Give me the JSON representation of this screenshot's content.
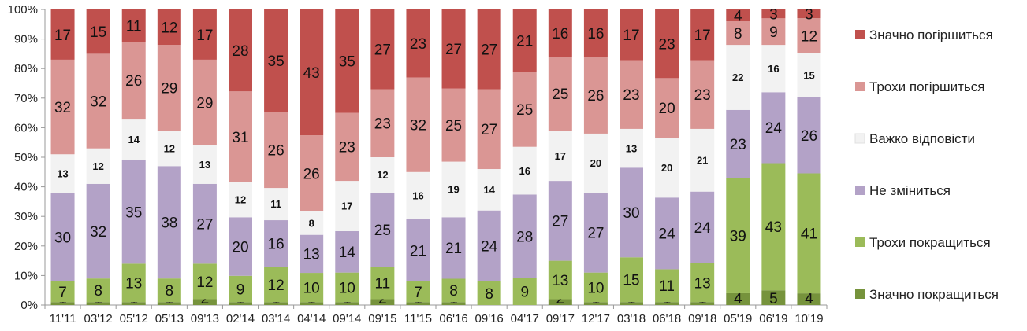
{
  "chart_data": {
    "type": "bar",
    "stacked": true,
    "normalized": true,
    "categories": [
      "11'11",
      "03'12",
      "05'12",
      "05'13",
      "09'13",
      "02'14",
      "03'14",
      "04'14",
      "09'14",
      "09'15",
      "11'15",
      "06'16",
      "09'16",
      "04'17",
      "09'17",
      "12'17",
      "03'18",
      "06'18",
      "09'18",
      "05'19",
      "06'19",
      "10'19"
    ],
    "ylim": [
      0,
      100
    ],
    "yticks": [
      "0%",
      "10%",
      "20%",
      "30%",
      "40%",
      "50%",
      "60%",
      "70%",
      "80%",
      "90%",
      "100%"
    ],
    "grid": false,
    "legend_position": "right",
    "series": [
      {
        "name": "Значно покращиться",
        "color": "#76933c",
        "values": [
          1,
          1,
          1,
          1,
          2,
          1,
          1,
          1,
          1,
          2,
          1,
          1,
          0,
          0,
          2,
          1,
          1,
          1,
          1,
          4,
          5,
          4
        ]
      },
      {
        "name": "Трохи покращиться",
        "color": "#9bbb59",
        "values": [
          7,
          8,
          13,
          8,
          12,
          9,
          12,
          10,
          10,
          11,
          7,
          8,
          8,
          9,
          13,
          10,
          15,
          11,
          13,
          39,
          43,
          41
        ]
      },
      {
        "name": "Не зміниться",
        "color": "#b3a2c7",
        "values": [
          30,
          32,
          35,
          38,
          27,
          20,
          16,
          13,
          14,
          25,
          21,
          21,
          24,
          28,
          27,
          27,
          30,
          24,
          24,
          23,
          24,
          26
        ]
      },
      {
        "name": "Важко відповісти",
        "color": "#f2f2f2",
        "values": [
          13,
          12,
          14,
          12,
          13,
          12,
          11,
          8,
          17,
          12,
          16,
          19,
          14,
          16,
          17,
          20,
          13,
          20,
          21,
          22,
          16,
          15
        ]
      },
      {
        "name": "Трохи погіршиться",
        "color": "#da9694",
        "values": [
          32,
          32,
          26,
          29,
          29,
          31,
          26,
          26,
          23,
          23,
          32,
          25,
          27,
          25,
          25,
          26,
          23,
          20,
          23,
          8,
          9,
          12
        ]
      },
      {
        "name": "Значно погіршиться",
        "color": "#c0504d",
        "values": [
          17,
          15,
          11,
          12,
          17,
          28,
          35,
          43,
          35,
          27,
          23,
          27,
          27,
          21,
          16,
          16,
          17,
          23,
          17,
          4,
          3,
          3
        ]
      }
    ]
  }
}
